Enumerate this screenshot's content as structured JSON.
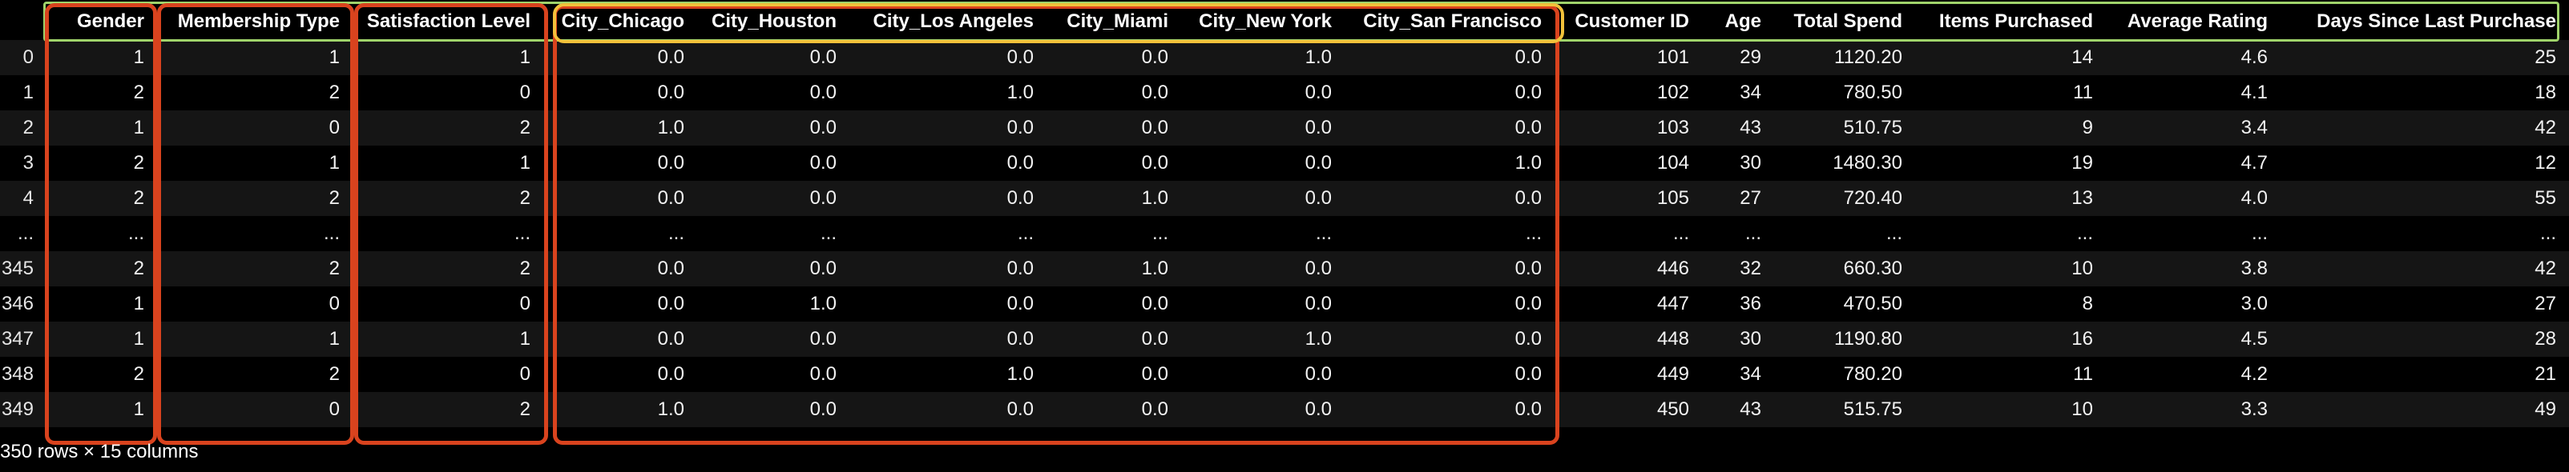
{
  "colors": {
    "header_outline": "#9fd36a",
    "highlight_red": "#d9431e",
    "highlight_yellow": "#f2c13a",
    "row_stripe": "#151515",
    "background": "#000000"
  },
  "table": {
    "columns": [
      "",
      "Gender",
      "Membership Type",
      "Satisfaction Level",
      "City_Chicago",
      "City_Houston",
      "City_Los Angeles",
      "City_Miami",
      "City_New York",
      "City_San Francisco",
      "Customer ID",
      "Age",
      "Total Spend",
      "Items Purchased",
      "Average Rating",
      "Days Since Last Purchase"
    ],
    "rows": [
      [
        "0",
        "1",
        "1",
        "1",
        "0.0",
        "0.0",
        "0.0",
        "0.0",
        "1.0",
        "0.0",
        "101",
        "29",
        "1120.20",
        "14",
        "4.6",
        "25"
      ],
      [
        "1",
        "2",
        "2",
        "0",
        "0.0",
        "0.0",
        "1.0",
        "0.0",
        "0.0",
        "0.0",
        "102",
        "34",
        "780.50",
        "11",
        "4.1",
        "18"
      ],
      [
        "2",
        "1",
        "0",
        "2",
        "1.0",
        "0.0",
        "0.0",
        "0.0",
        "0.0",
        "0.0",
        "103",
        "43",
        "510.75",
        "9",
        "3.4",
        "42"
      ],
      [
        "3",
        "2",
        "1",
        "1",
        "0.0",
        "0.0",
        "0.0",
        "0.0",
        "0.0",
        "1.0",
        "104",
        "30",
        "1480.30",
        "19",
        "4.7",
        "12"
      ],
      [
        "4",
        "2",
        "2",
        "2",
        "0.0",
        "0.0",
        "0.0",
        "1.0",
        "0.0",
        "0.0",
        "105",
        "27",
        "720.40",
        "13",
        "4.0",
        "55"
      ],
      [
        "...",
        "...",
        "...",
        "...",
        "...",
        "...",
        "...",
        "...",
        "...",
        "...",
        "...",
        "...",
        "...",
        "...",
        "...",
        "..."
      ],
      [
        "345",
        "2",
        "2",
        "2",
        "0.0",
        "0.0",
        "0.0",
        "1.0",
        "0.0",
        "0.0",
        "446",
        "32",
        "660.30",
        "10",
        "3.8",
        "42"
      ],
      [
        "346",
        "1",
        "0",
        "0",
        "0.0",
        "1.0",
        "0.0",
        "0.0",
        "0.0",
        "0.0",
        "447",
        "36",
        "470.50",
        "8",
        "3.0",
        "27"
      ],
      [
        "347",
        "1",
        "1",
        "1",
        "0.0",
        "0.0",
        "0.0",
        "0.0",
        "1.0",
        "0.0",
        "448",
        "30",
        "1190.80",
        "16",
        "4.5",
        "28"
      ],
      [
        "348",
        "2",
        "2",
        "0",
        "0.0",
        "0.0",
        "1.0",
        "0.0",
        "0.0",
        "0.0",
        "449",
        "34",
        "780.20",
        "11",
        "4.2",
        "21"
      ],
      [
        "349",
        "1",
        "0",
        "2",
        "1.0",
        "0.0",
        "0.0",
        "0.0",
        "0.0",
        "0.0",
        "450",
        "43",
        "515.75",
        "10",
        "3.3",
        "49"
      ]
    ]
  },
  "footer": {
    "shape_text": "350 rows × 15 columns"
  }
}
